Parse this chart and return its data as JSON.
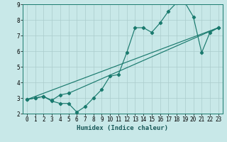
{
  "xlabel": "Humidex (Indice chaleur)",
  "xlim": [
    -0.5,
    23.5
  ],
  "ylim": [
    2,
    9
  ],
  "xticks": [
    0,
    1,
    2,
    3,
    4,
    5,
    6,
    7,
    8,
    9,
    10,
    11,
    12,
    13,
    14,
    15,
    16,
    17,
    18,
    19,
    20,
    21,
    22,
    23
  ],
  "yticks": [
    2,
    3,
    4,
    5,
    6,
    7,
    8,
    9
  ],
  "background_color": "#c8e8e8",
  "grid_color": "#aacccc",
  "line_color": "#1a7a6e",
  "line1_x": [
    0,
    1,
    2,
    3,
    4,
    5,
    6,
    7,
    8,
    9,
    10,
    11,
    12,
    13,
    14,
    15,
    16,
    17,
    18,
    19,
    20,
    21,
    22,
    23
  ],
  "line1_y": [
    2.9,
    3.0,
    3.1,
    2.8,
    2.65,
    2.65,
    2.1,
    2.45,
    3.0,
    3.55,
    4.4,
    4.5,
    5.9,
    7.5,
    7.5,
    7.2,
    7.8,
    8.55,
    9.1,
    9.1,
    8.2,
    5.9,
    7.2,
    7.5
  ],
  "line2_x": [
    0,
    1,
    2,
    3,
    4,
    5,
    23
  ],
  "line2_y": [
    2.9,
    3.0,
    3.1,
    2.85,
    3.2,
    3.3,
    7.5
  ],
  "line3_x": [
    0,
    23
  ],
  "line3_y": [
    2.9,
    7.5
  ]
}
